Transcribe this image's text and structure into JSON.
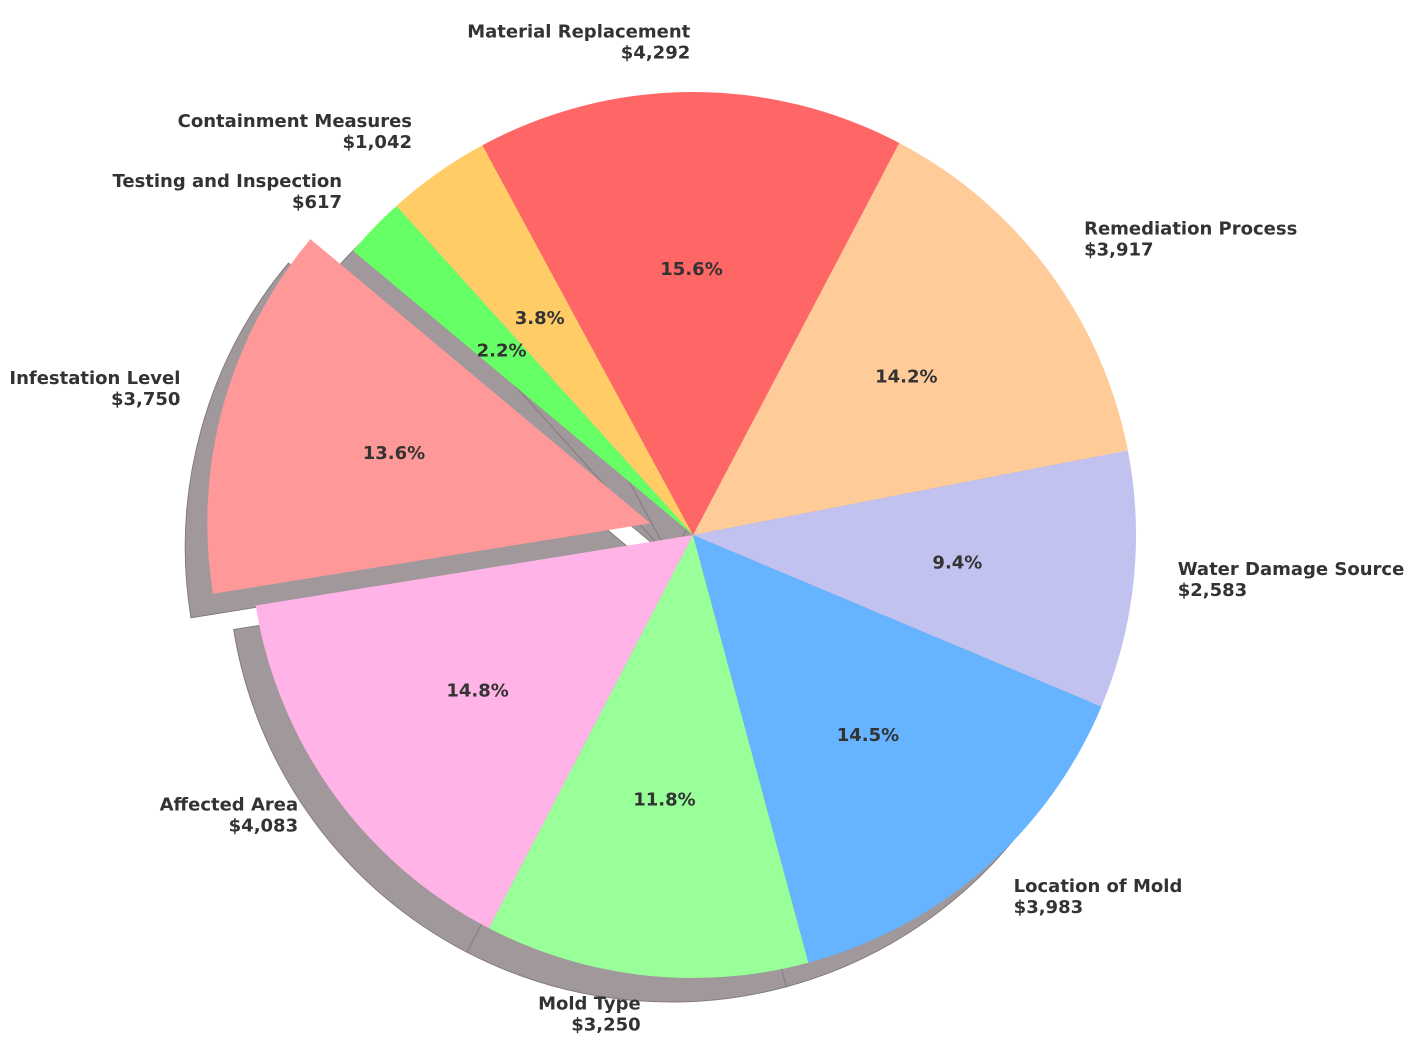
{
  "chart_data": {
    "type": "pie",
    "categories": [
      "Remediation Process",
      "Material Replacement",
      "Containment Measures",
      "Testing and Inspection",
      "Infestation Level",
      "Affected Area",
      "Mold Type",
      "Location of Mold",
      "Water Damage Source"
    ],
    "values": [
      3917,
      4292,
      1042,
      617,
      3750,
      4083,
      3250,
      3983,
      2583
    ],
    "value_labels": [
      "$3,917",
      "$4,292",
      "$1,042",
      "$617",
      "$3,750",
      "$4,083",
      "$3,250",
      "$3,983",
      "$2,583"
    ],
    "percent_labels": [
      "14.2%",
      "15.6%",
      "3.8%",
      "2.2%",
      "13.6%",
      "14.8%",
      "11.8%",
      "14.5%",
      "9.4%"
    ],
    "colors": [
      "#ffcc99",
      "#ff6666",
      "#ffcc66",
      "#66ff66",
      "#ff9999",
      "#ffb3e6",
      "#99ff99",
      "#66b3ff",
      "#c2c2f0"
    ],
    "explode": [
      0,
      0,
      0,
      0,
      0.1,
      0,
      0,
      0,
      0
    ],
    "start_angle": 11,
    "shadow": true
  }
}
